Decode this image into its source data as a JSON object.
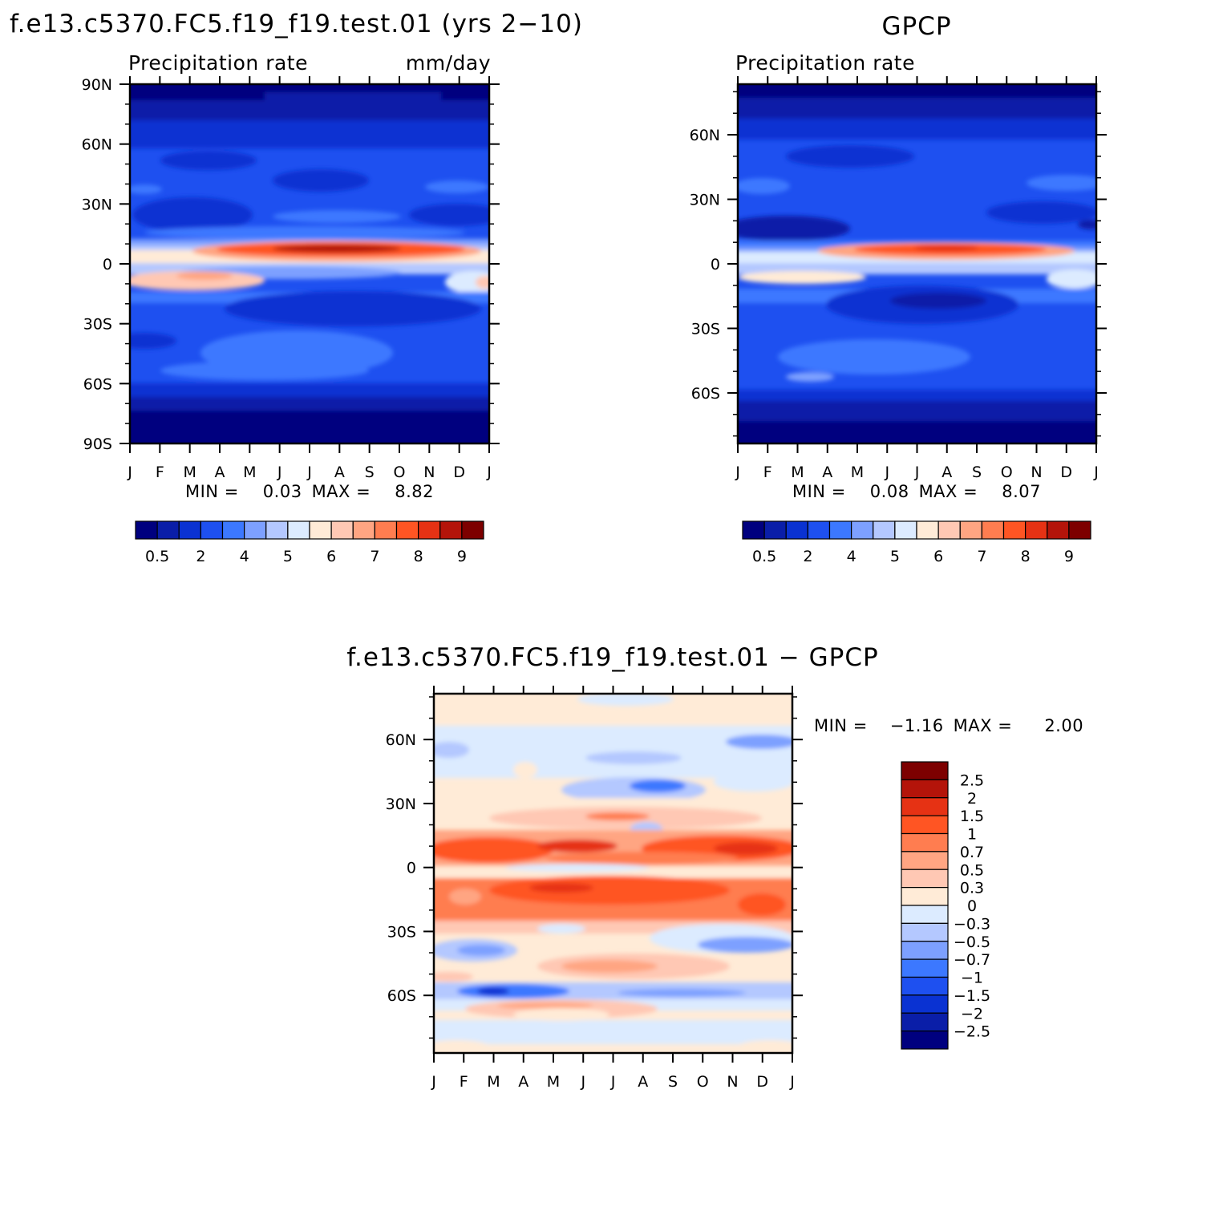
{
  "chart_data": [
    {
      "type": "heatmap",
      "title": "f.e13.c5370.FC5.f19_f19.test.01 (yrs 2−10)",
      "subtitle_left": "Precipitation rate",
      "subtitle_right": "mm/day",
      "stats": {
        "min_label": "MIN =",
        "min": "0.03",
        "max_label": "MAX =",
        "max": "8.82"
      },
      "x_ticks": [
        "J",
        "F",
        "M",
        "A",
        "M",
        "J",
        "J",
        "A",
        "S",
        "O",
        "N",
        "D",
        "J"
      ],
      "y_ticks": [
        "90N",
        "60N",
        "30N",
        "0",
        "30S",
        "60S",
        "90S"
      ],
      "colorbar": {
        "orientation": "horizontal",
        "labels": [
          "0.5",
          "2",
          "4",
          "5",
          "6",
          "7",
          "8",
          "9"
        ],
        "colors": [
          "#00007f",
          "#0a1ea8",
          "#0a32d2",
          "#1e50f0",
          "#3c78ff",
          "#7da0ff",
          "#b4c8ff",
          "#dcebff",
          "#ffebd7",
          "#ffc8b4",
          "#ffa582",
          "#ff7d50",
          "#ff5523",
          "#e63214",
          "#b4140a",
          "#7d0000"
        ]
      }
    },
    {
      "type": "heatmap",
      "title": "GPCP",
      "subtitle_left": "Precipitation rate",
      "stats": {
        "min_label": "MIN =",
        "min": "0.08",
        "max_label": "MAX =",
        "max": "8.07"
      },
      "x_ticks": [
        "J",
        "F",
        "M",
        "A",
        "M",
        "J",
        "J",
        "A",
        "S",
        "O",
        "N",
        "D",
        "J"
      ],
      "y_ticks": [
        "60N",
        "30N",
        "0",
        "30S",
        "60S"
      ],
      "colorbar": {
        "orientation": "horizontal",
        "labels": [
          "0.5",
          "2",
          "4",
          "5",
          "6",
          "7",
          "8",
          "9"
        ],
        "colors": [
          "#00007f",
          "#0a1ea8",
          "#0a32d2",
          "#1e50f0",
          "#3c78ff",
          "#7da0ff",
          "#b4c8ff",
          "#dcebff",
          "#ffebd7",
          "#ffc8b4",
          "#ffa582",
          "#ff7d50",
          "#ff5523",
          "#e63214",
          "#b4140a",
          "#7d0000"
        ]
      }
    },
    {
      "type": "heatmap",
      "title": "f.e13.c5370.FC5.f19_f19.test.01 − GPCP",
      "stats": {
        "min_label": "MIN =",
        "min": "−1.16",
        "max_label": "MAX =",
        "max": "2.00"
      },
      "x_ticks": [
        "J",
        "F",
        "M",
        "A",
        "M",
        "J",
        "J",
        "A",
        "S",
        "O",
        "N",
        "D",
        "J"
      ],
      "y_ticks": [
        "60N",
        "30N",
        "0",
        "30S",
        "60S"
      ],
      "colorbar": {
        "orientation": "vertical",
        "labels": [
          "2.5",
          "2",
          "1.5",
          "1",
          "0.7",
          "0.5",
          "0.3",
          "0",
          "−0.3",
          "−0.5",
          "−0.7",
          "−1",
          "−1.5",
          "−2",
          "−2.5"
        ],
        "colors": [
          "#7d0000",
          "#b4140a",
          "#e63214",
          "#ff5523",
          "#ff7d50",
          "#ffa582",
          "#ffc8b4",
          "#ffebd7",
          "#dcebff",
          "#b4c8ff",
          "#7da0ff",
          "#3c78ff",
          "#1e50f0",
          "#0a32d2",
          "#0a1ea8",
          "#00007f"
        ]
      }
    }
  ]
}
